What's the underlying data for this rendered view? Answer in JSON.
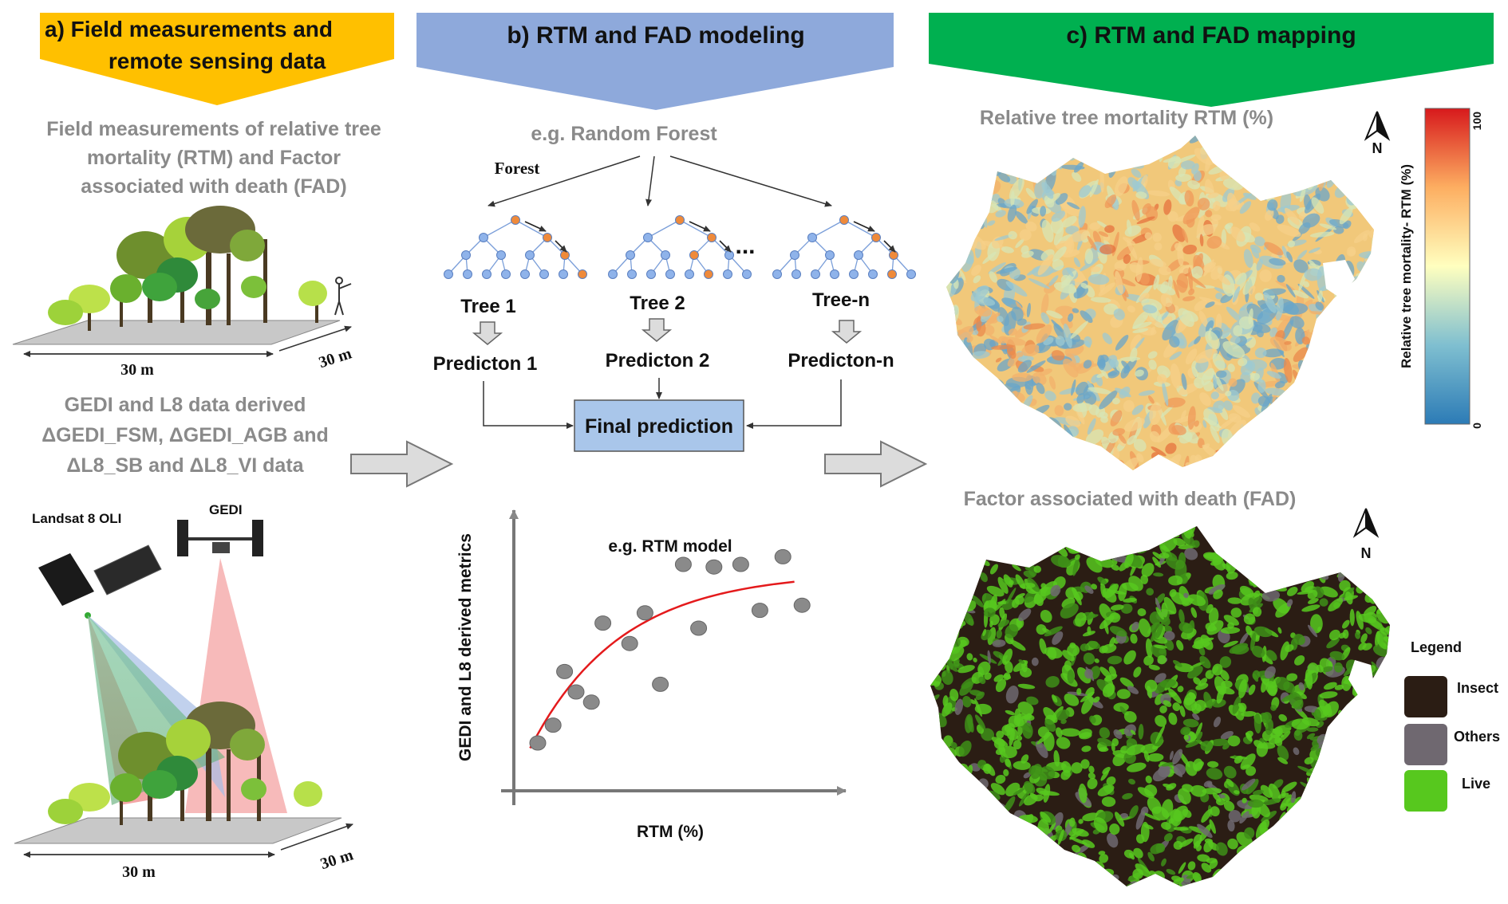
{
  "colors": {
    "panel_a": "#FFC000",
    "panel_b": "#8EA9DB",
    "panel_c": "#00B050",
    "grey_text": "#8a8a8a",
    "final_box": "#A9C6EA",
    "curve": "#E41A1C",
    "insect": "#2b1d14",
    "others": "#6f6870",
    "live": "#57C81E"
  },
  "panel_a": {
    "header_line1": "a)   Field measurements and",
    "header_line2": "remote sensing data",
    "field_text_line1": "Field measurements of relative tree",
    "field_text_line2": "mortality (RTM) and Factor",
    "field_text_line3": "associated with death (FAD)",
    "plot_width": "30 m",
    "plot_depth": "30 m",
    "gedi_text_line1": "GEDI and L8 data derived",
    "gedi_text_line2": "ΔGEDI_FSM, ΔGEDI_AGB and",
    "gedi_text_line3": "ΔL8_SB and ΔL8_VI data",
    "landsat_label": "Landsat 8 OLI",
    "gedi_label": "GEDI",
    "plot2_width": "30 m",
    "plot2_depth": "30 m"
  },
  "panel_b": {
    "header": "b) RTM and FAD modeling",
    "example_method": "e.g. Random Forest",
    "forest_label": "Forest",
    "ellipsis": "...",
    "trees": [
      "Tree 1",
      "Tree 2",
      "Tree-n"
    ],
    "predictions": [
      "Predicton 1",
      "Predicton 2",
      "Predicton-n"
    ],
    "final_prediction": "Final prediction",
    "chart_title": "e.g. RTM model",
    "ylabel": "GEDI and L8 derived metrics",
    "xlabel": "RTM (%)"
  },
  "panel_c": {
    "header": "c) RTM and FAD mapping",
    "rtm_title": "Relative tree mortality RTM (%)",
    "north_label": "N",
    "colorbar_label": "Relative tree mortality- RTM (%)",
    "colorbar_max": "100",
    "colorbar_min": "0",
    "fad_title": "Factor associated with death (FAD)",
    "north_label2": "N",
    "legend_title": "Legend",
    "legend_items": [
      {
        "label": "Insect",
        "color": "#2b1d14"
      },
      {
        "label": "Others",
        "color": "#6f6870"
      },
      {
        "label": "Live",
        "color": "#57C81E"
      }
    ]
  },
  "chart_data": {
    "type": "scatter",
    "title": "e.g. RTM model",
    "xlabel": "RTM (%)",
    "ylabel": "GEDI and L8 derived metrics",
    "points": [
      [
        0.5,
        1.5
      ],
      [
        0.9,
        2.2
      ],
      [
        1.2,
        4.3
      ],
      [
        1.5,
        3.5
      ],
      [
        1.9,
        3.1
      ],
      [
        2.2,
        6.2
      ],
      [
        2.9,
        5.4
      ],
      [
        3.3,
        6.6
      ],
      [
        3.7,
        3.8
      ],
      [
        4.3,
        8.5
      ],
      [
        4.7,
        6.0
      ],
      [
        5.1,
        8.4
      ],
      [
        5.8,
        8.5
      ],
      [
        6.3,
        6.7
      ],
      [
        6.9,
        8.8
      ],
      [
        7.4,
        6.9
      ]
    ],
    "trend": {
      "type": "saturating curve",
      "color": "#E41A1C"
    },
    "xlim": [
      0,
      8.5
    ],
    "ylim": [
      0,
      10
    ]
  }
}
